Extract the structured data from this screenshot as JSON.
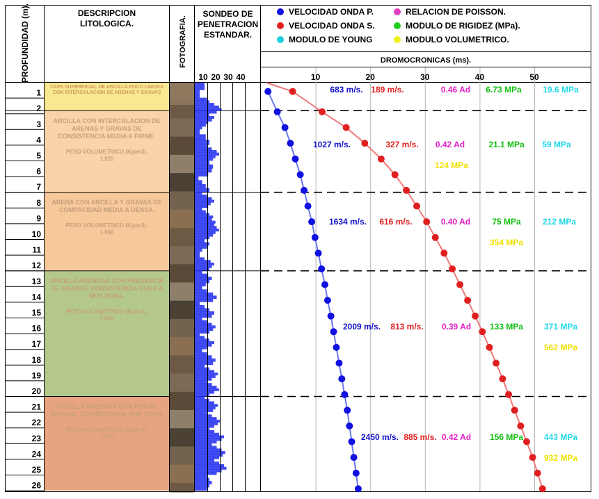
{
  "headers": {
    "depth": "PROFUNDIDAD (m).",
    "description": "DESCRIPCION LITOLOGICA.",
    "photo": "FOTOGRAFIA.",
    "spt": "SONDEO DE PENETRACION ESTANDAR.",
    "dromo": "DROMOCRONICAS (ms)."
  },
  "legend": [
    {
      "label": "VELOCIDAD ONDA P.",
      "color": "#1010e0"
    },
    {
      "label": "RELACION DE POISSON.",
      "color": "#e040c0"
    },
    {
      "label": "VELOCIDAD ONDA S.",
      "color": "#e02020"
    },
    {
      "label": "MODULO DE RIGIDEZ (MPa).",
      "color": "#20d020"
    },
    {
      "label": "MODULO DE YOUNG",
      "color": "#20d0e0"
    },
    {
      "label": "MODULO VOLUMETRICO.",
      "color": "#f0f020"
    }
  ],
  "spt_ticks": [
    "10",
    "20",
    "30",
    "40"
  ],
  "depth_labels": [
    "1",
    "2",
    "3",
    "4",
    "5",
    "6",
    "7",
    "8",
    "9",
    "10",
    "11",
    "12",
    "13",
    "14",
    "15",
    "16",
    "17",
    "18",
    "19",
    "20",
    "21",
    "22",
    "23",
    "24",
    "25",
    "26"
  ],
  "layers": [
    {
      "description": "CAPA SUPERFICIAL DE ARCILLA POCO LIMOSA CON INTERCALACION DE ARENAS Y GRAVAS",
      "weight_label": "",
      "weight": "",
      "color": "#f8e890"
    },
    {
      "description": "ARCILLA CON INTERCALACION DE ARENAS Y GRAVAS DE CONSISTENCIA MEDIA A FIRME.",
      "weight_label": "PESO VOLUMETRICO (Kg/m3).",
      "weight": "1.920",
      "color": "#f9d4a8"
    },
    {
      "description": "ARENA CON ARCILLA Y GRAVAS DE COMPACIDAD MEDIA A DENSA.",
      "weight_label": "PESO VOLUMETRICO (Kg/m3).",
      "weight": "1.960",
      "color": "#f7c89a"
    },
    {
      "description": "ARCILLA ARENOSA CON PRESENCIA DE GRAVAS, CONSISTENCIA DURA A MUY DURA.",
      "weight_label": "PESO VOLUMETRICO (Kg/m3).",
      "weight": "1.980",
      "color": "#b4c88a"
    },
    {
      "description": "ARCILLA ARENOSA CON POCAS GRAVAS, CONSISTENCIA MUY DURA.",
      "weight_label": "PESO VOLUMETRICO (Kg/m3).",
      "weight": "1.990",
      "color": "#e8a47e"
    }
  ],
  "layer_values": [
    {
      "vp": "683 m/s.",
      "vs": "189 m/s.",
      "poisson": "0.46 Ad",
      "rigidez": "6.73 MPa",
      "young": "19.6 MPa",
      "volumetrico": ""
    },
    {
      "vp": "1027 m/s.",
      "vs": "327 m/s.",
      "poisson": "0.42 Ad",
      "rigidez": "21.1 MPa",
      "young": "59 MPa",
      "volumetrico": "124 MPa"
    },
    {
      "vp": "1634 m/s.",
      "vs": "616 m/s.",
      "poisson": "0.40 Ad",
      "rigidez": "75 MPa",
      "young": "212 MPa",
      "volumetrico": "354 MPa"
    },
    {
      "vp": "2009 m/s.",
      "vs": "813 m/s.",
      "poisson": "0.39 Ad",
      "rigidez": "133 MPa",
      "young": "371 MPa",
      "volumetrico": "562 MPa"
    },
    {
      "vp": "2450 m/s.",
      "vs": "885 m/s.",
      "poisson": "0.42 Ad",
      "rigidez": "156 MPa",
      "young": "443 MPa",
      "volumetrico": "932 MPa"
    }
  ],
  "chart_data": {
    "type": "line",
    "xlabel": "DROMOCRONICAS (ms).",
    "ylabel": "PROFUNDIDAD (m).",
    "xlim": [
      0,
      52
    ],
    "xticks": [
      "10",
      "20",
      "30",
      "40",
      "50"
    ],
    "ylim": [
      0,
      26
    ],
    "layer_boundaries_m": [
      1.8,
      7,
      12,
      20
    ],
    "series": [
      {
        "name": "VELOCIDAD ONDA P.",
        "color": "#1010e0",
        "x": [
          1.3,
          3.0,
          4.4,
          5.4,
          6.3,
          7.2,
          7.9,
          8.6,
          9.3,
          9.9,
          10.5,
          11.1,
          11.7,
          12.2,
          12.8,
          13.3,
          13.8,
          14.3,
          14.8,
          15.3,
          15.8,
          16.2,
          16.6,
          17.0,
          17.4,
          17.8
        ],
        "y": [
          0.6,
          1.9,
          2.9,
          3.9,
          4.9,
          5.9,
          6.9,
          7.9,
          8.9,
          9.9,
          10.9,
          11.9,
          12.9,
          13.9,
          14.9,
          15.9,
          16.9,
          17.9,
          18.9,
          19.9,
          20.9,
          21.9,
          22.9,
          23.9,
          24.9,
          25.9
        ]
      },
      {
        "name": "VELOCIDAD ONDA S.",
        "color": "#e02020",
        "x": [
          5.8,
          11.2,
          15.6,
          19.0,
          22.0,
          24.5,
          26.6,
          28.5,
          30.3,
          31.9,
          33.5,
          35.0,
          36.4,
          37.8,
          39.2,
          40.5,
          41.8,
          43.0,
          44.2,
          45.3,
          46.4,
          47.5,
          48.6,
          49.7,
          50.6,
          51.5
        ],
        "y": [
          0.6,
          1.9,
          2.9,
          3.9,
          4.9,
          5.9,
          6.9,
          7.9,
          8.9,
          9.9,
          10.9,
          11.9,
          12.9,
          13.9,
          14.9,
          15.9,
          16.9,
          17.9,
          18.9,
          19.9,
          20.9,
          21.9,
          22.9,
          23.9,
          24.9,
          25.9
        ]
      }
    ]
  },
  "spt_blows": [
    [
      8,
      4
    ],
    [
      10,
      12,
      16,
      20,
      22,
      18
    ],
    [
      12,
      16,
      14,
      11,
      9,
      6
    ],
    [
      4,
      9,
      12
    ],
    [
      10,
      14,
      18,
      20,
      17,
      15
    ],
    [
      12,
      15,
      14,
      11
    ],
    [
      3,
      6,
      9,
      12
    ],
    [
      6,
      10,
      14,
      16,
      13,
      11
    ],
    [
      6,
      9,
      12,
      15,
      14,
      17
    ],
    [
      16,
      18,
      20,
      17,
      15,
      12
    ],
    [
      8,
      12,
      10,
      6,
      4
    ],
    [
      4,
      8,
      13,
      16,
      14,
      12
    ],
    [
      6,
      11,
      14,
      12,
      9
    ],
    [
      6,
      10,
      15,
      18,
      15
    ],
    [
      4,
      8,
      12,
      16,
      14
    ],
    [
      6,
      10,
      14,
      17,
      15,
      12
    ],
    [
      4,
      8,
      12,
      16,
      14,
      10
    ],
    [
      6,
      10,
      14,
      17,
      15
    ],
    [
      8,
      12,
      16,
      19,
      17,
      14
    ],
    [
      10,
      14,
      18,
      20,
      16,
      12
    ],
    [
      8,
      12,
      16,
      19,
      17,
      15
    ],
    [
      10,
      14,
      18,
      21,
      19,
      16
    ],
    [
      12,
      16,
      20,
      24,
      22,
      18
    ],
    [
      14,
      18,
      22,
      25,
      23,
      20
    ],
    [
      16,
      20,
      24,
      26,
      22,
      18
    ],
    [
      10,
      12,
      14,
      12,
      10
    ]
  ]
}
